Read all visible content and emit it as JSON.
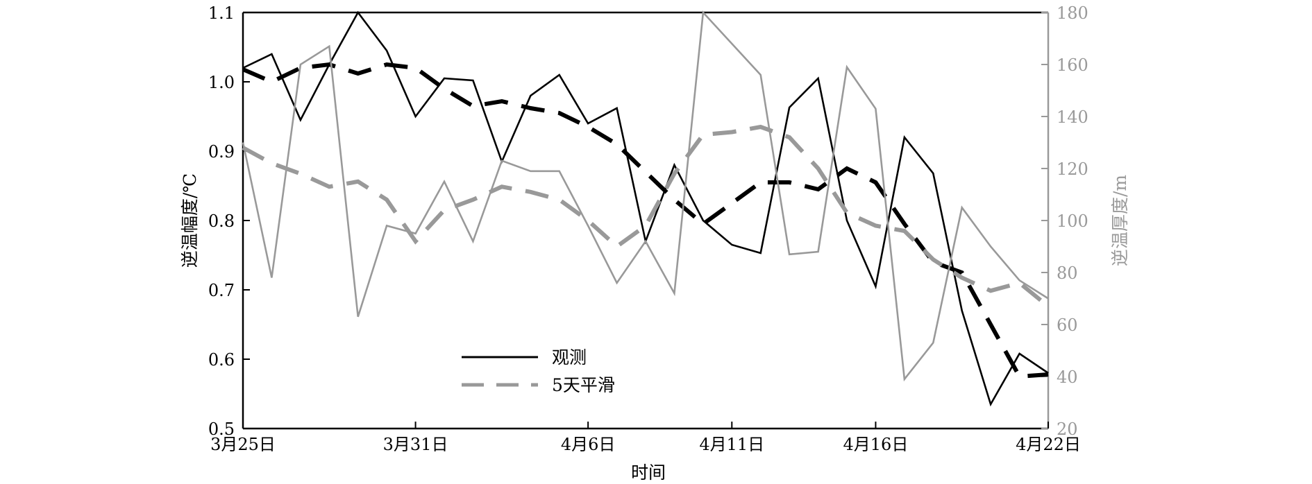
{
  "chart_data": {
    "type": "line",
    "xlabel": "时间",
    "ylabel_left": "逆温幅度/℃",
    "ylabel_right": "逆温厚度/m",
    "x_ticks": [
      "3月25日",
      "3月31日",
      "4月6日",
      "4月11日",
      "4月16日",
      "4月22日"
    ],
    "x_tick_days": [
      0,
      6,
      12,
      17,
      22,
      28
    ],
    "x_range": [
      0,
      28
    ],
    "ylim_left": [
      0.5,
      1.1
    ],
    "yticks_left": [
      0.5,
      0.6,
      0.7,
      0.8,
      0.9,
      1.0,
      1.1
    ],
    "ylim_right": [
      20,
      180
    ],
    "yticks_right": [
      20,
      40,
      60,
      80,
      100,
      120,
      140,
      160,
      180
    ],
    "legend": [
      {
        "label": "观测",
        "style": "solid",
        "color": "#000000"
      },
      {
        "label": "5天平滑",
        "style": "dashed",
        "color": "#999999"
      }
    ],
    "legend_position": "lower-center",
    "colors": {
      "black": "#000000",
      "gray": "#999999",
      "gray_axis": "#999999"
    },
    "series": [
      {
        "axis": "left",
        "style": "solid",
        "color": "#000000",
        "values": [
          1.02,
          1.04,
          0.945,
          1.025,
          1.1,
          1.045,
          0.95,
          1.005,
          1.002,
          0.885,
          0.98,
          1.01,
          0.94,
          0.962,
          0.77,
          0.88,
          0.8,
          0.765,
          0.753,
          0.963,
          1.005,
          0.8,
          0.705,
          0.92,
          0.868,
          0.67,
          0.535,
          0.608,
          0.58
        ]
      },
      {
        "axis": "left",
        "style": "dashed",
        "color": "#000000",
        "values": [
          1.018,
          1.0,
          1.02,
          1.025,
          1.012,
          1.025,
          1.02,
          0.99,
          0.965,
          0.972,
          0.962,
          0.955,
          0.935,
          0.91,
          0.87,
          0.83,
          0.795,
          0.825,
          0.855,
          0.855,
          0.845,
          0.875,
          0.855,
          0.795,
          0.74,
          0.725,
          0.65,
          0.575,
          0.578
        ]
      },
      {
        "axis": "right",
        "style": "solid",
        "color": "#999999",
        "values": [
          130,
          78,
          160,
          167,
          63,
          98,
          95,
          115,
          92,
          123,
          119,
          119,
          98,
          76,
          92,
          72,
          180,
          168,
          156,
          87,
          88,
          159,
          143,
          39,
          53,
          105,
          90,
          77,
          70
        ]
      },
      {
        "axis": "right",
        "style": "dashed",
        "color": "#999999",
        "values": [
          128,
          122,
          118,
          113,
          115,
          108,
          92,
          104,
          108,
          113,
          111,
          108,
          100,
          90,
          98,
          118,
          133,
          134,
          136,
          132,
          120,
          103,
          98,
          96,
          85,
          78,
          73,
          76,
          67
        ]
      }
    ]
  }
}
